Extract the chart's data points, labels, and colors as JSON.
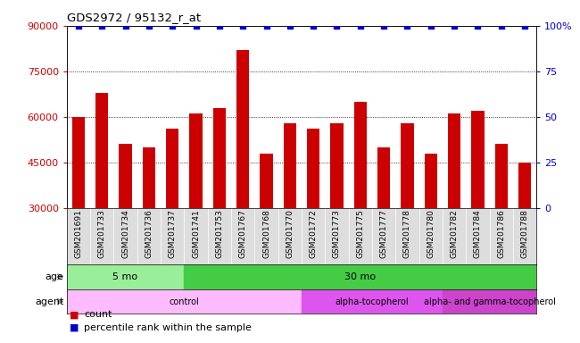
{
  "title": "GDS2972 / 95132_r_at",
  "samples": [
    "GSM201691",
    "GSM201733",
    "GSM201734",
    "GSM201736",
    "GSM201737",
    "GSM201741",
    "GSM201753",
    "GSM201767",
    "GSM201768",
    "GSM201770",
    "GSM201772",
    "GSM201773",
    "GSM201775",
    "GSM201777",
    "GSM201778",
    "GSM201780",
    "GSM201782",
    "GSM201784",
    "GSM201786",
    "GSM201788"
  ],
  "counts": [
    60000,
    68000,
    51000,
    50000,
    56000,
    61000,
    63000,
    82000,
    48000,
    58000,
    56000,
    58000,
    65000,
    50000,
    58000,
    48000,
    61000,
    62000,
    51000,
    45000
  ],
  "percentile": [
    100,
    100,
    100,
    100,
    100,
    100,
    100,
    100,
    100,
    100,
    100,
    100,
    100,
    100,
    100,
    100,
    100,
    100,
    100,
    100
  ],
  "bar_color": "#cc0000",
  "percentile_color": "#0000cc",
  "ylim_left": [
    30000,
    90000
  ],
  "ylim_right": [
    0,
    100
  ],
  "yticks_left": [
    30000,
    45000,
    60000,
    75000,
    90000
  ],
  "yticks_right": [
    0,
    25,
    50,
    75,
    100
  ],
  "ytick_labels_right": [
    "0",
    "25",
    "50",
    "75",
    "100%"
  ],
  "age_groups": [
    {
      "label": "5 mo",
      "start": 0,
      "end": 5,
      "color": "#aaeea a"
    },
    {
      "label": "30 mo",
      "start": 5,
      "end": 20,
      "color": "#44cc44"
    }
  ],
  "agent_groups": [
    {
      "label": "control",
      "start": 0,
      "end": 10,
      "color": "#ffbbff"
    },
    {
      "label": "alpha-tocopherol",
      "start": 10,
      "end": 16,
      "color": "#dd55dd"
    },
    {
      "label": "alpha- and gamma-tocopherol",
      "start": 16,
      "end": 20,
      "color": "#cc44cc"
    }
  ],
  "legend_count_label": "count",
  "legend_percentile_label": "percentile rank within the sample",
  "age_label": "age",
  "agent_label": "agent",
  "bg_xtick": "#cccccc"
}
